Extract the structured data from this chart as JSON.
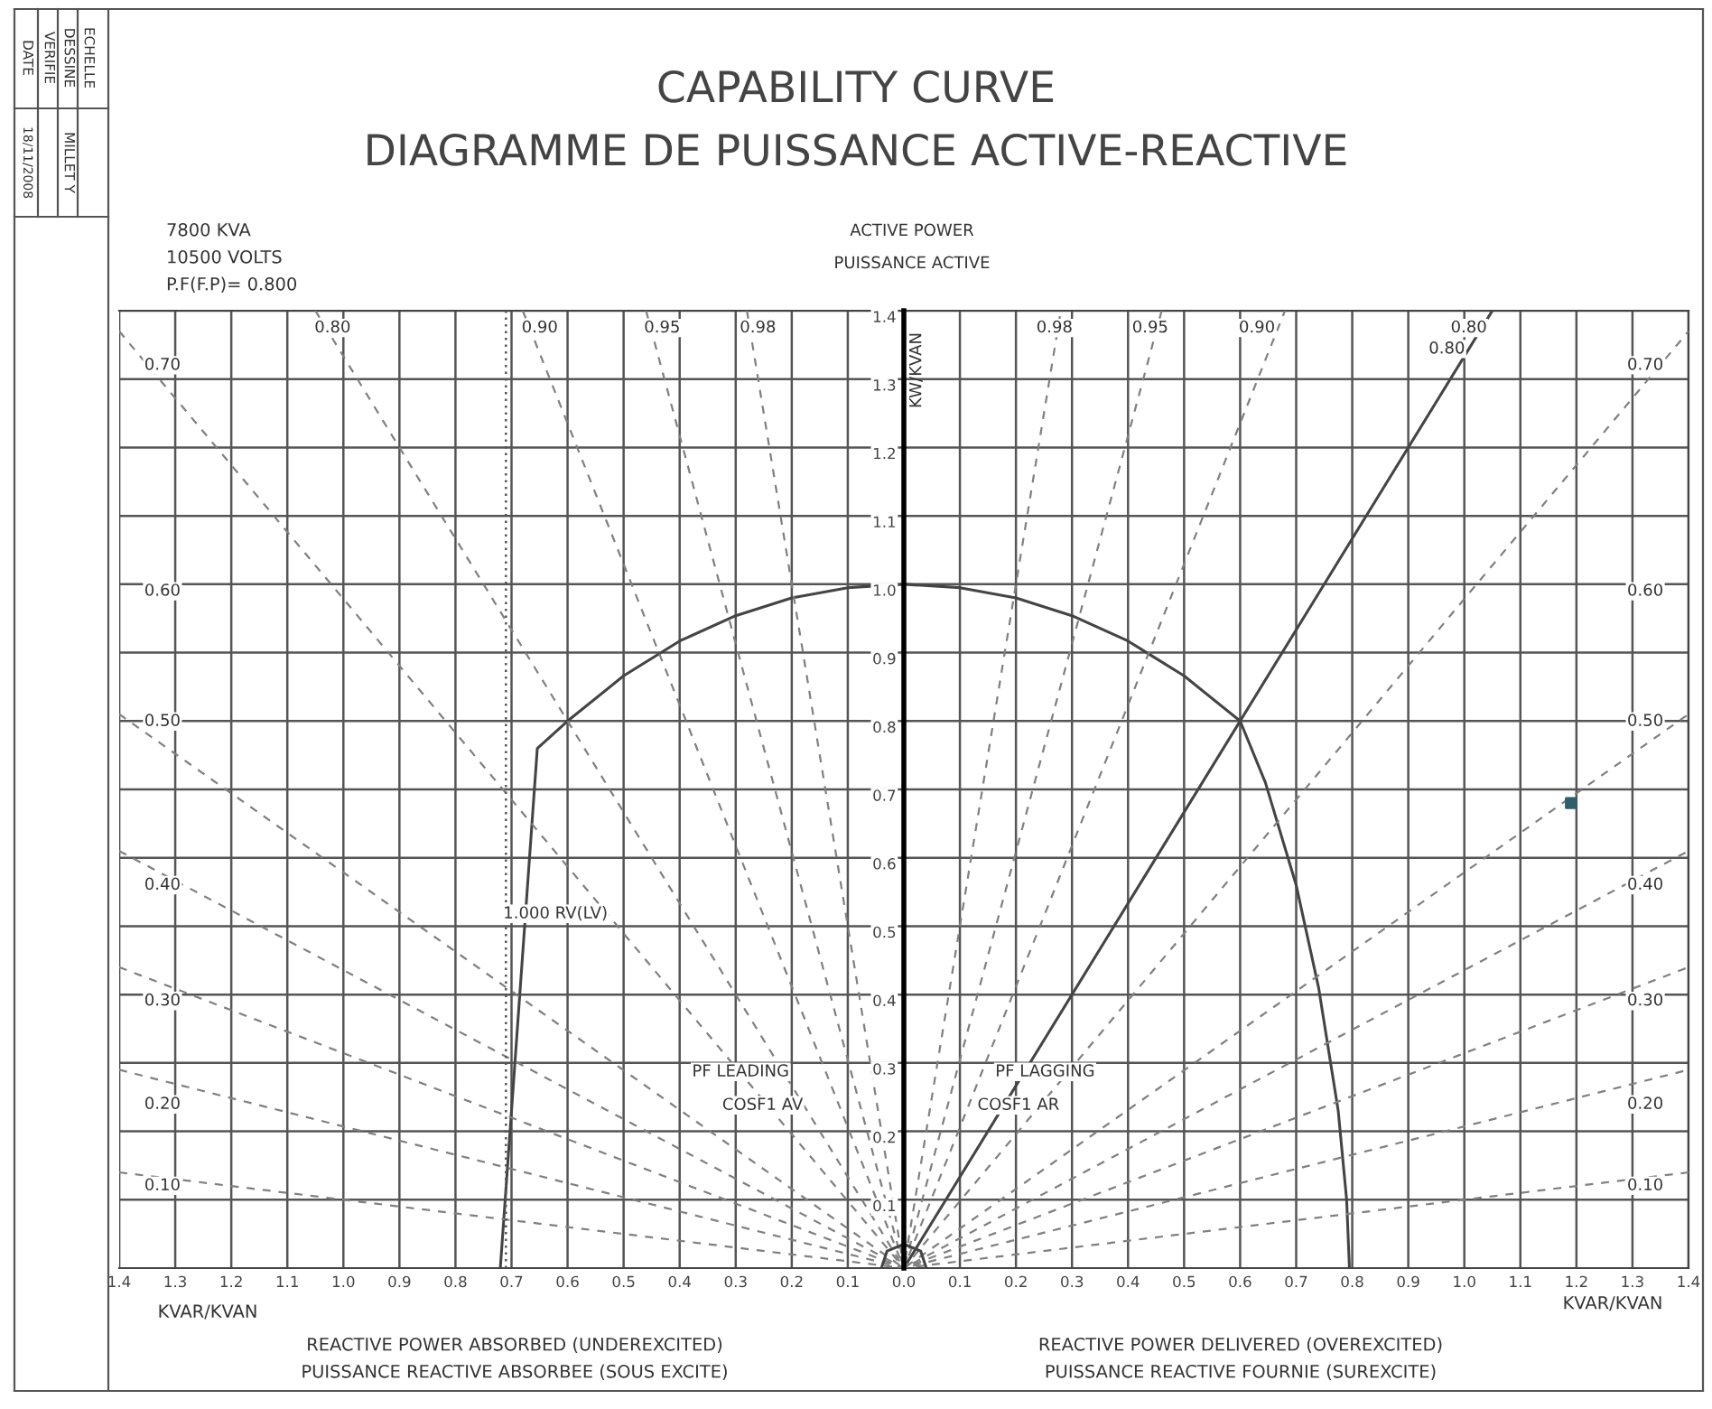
{
  "chart_data": {
    "type": "line",
    "title": "CAPABILITY CURVE",
    "subtitle": "DIAGRAMME DE PUISSANCE ACTIVE-REACTIVE",
    "xlabel": "KVAR/KVAN",
    "ylabel": "KW/KVAN",
    "xlim": [
      -1.4,
      1.4
    ],
    "ylim": [
      0,
      1.4
    ],
    "xticks": [
      {
        "value": -1.4,
        "label": "1.4"
      },
      {
        "value": -1.3,
        "label": "1.3"
      },
      {
        "value": -1.2,
        "label": "1.2"
      },
      {
        "value": -1.1,
        "label": "1.1"
      },
      {
        "value": -1.0,
        "label": "1.0"
      },
      {
        "value": -0.9,
        "label": "0.9"
      },
      {
        "value": -0.8,
        "label": "0.8"
      },
      {
        "value": -0.7,
        "label": "0.7"
      },
      {
        "value": -0.6,
        "label": "0.6"
      },
      {
        "value": -0.5,
        "label": "0.5"
      },
      {
        "value": -0.4,
        "label": "0.4"
      },
      {
        "value": -0.3,
        "label": "0.3"
      },
      {
        "value": -0.2,
        "label": "0.2"
      },
      {
        "value": -0.1,
        "label": "0.1"
      },
      {
        "value": 0,
        "label": "0.0"
      },
      0.1,
      0.2,
      0.3,
      0.4,
      0.5,
      0.6,
      0.7,
      0.8,
      0.9,
      {
        "value": 1,
        "label": "1.0"
      },
      1.1,
      1.2,
      1.3,
      1.4
    ],
    "yticks": [
      0.1,
      0.2,
      0.3,
      0.4,
      0.5,
      0.6,
      0.7,
      0.8,
      0.9,
      {
        "value": 1,
        "label": "1.0"
      },
      1.1,
      1.2,
      1.3,
      1.4
    ],
    "grid": true,
    "series": [
      {
        "color": "#444444",
        "line_style": "solid",
        "x": [
          -0.72,
          -0.654,
          -0.6,
          -0.5,
          -0.4,
          -0.3,
          -0.2,
          -0.1,
          0,
          0.1,
          0.2,
          0.3,
          0.4,
          0.5,
          0.6,
          0.645,
          0.7,
          0.74,
          0.775,
          0.79,
          0.795
        ],
        "values": [
          0,
          0.76,
          0.8,
          0.866,
          0.917,
          0.954,
          0.98,
          0.995,
          1.0,
          0.995,
          0.98,
          0.954,
          0.917,
          0.866,
          0.8,
          0.71,
          0.56,
          0.41,
          0.23,
          0.1,
          0
        ]
      },
      {
        "color": "#444444",
        "line_style": "solid",
        "x": [
          0,
          1.05
        ],
        "values": [
          0,
          1.4
        ]
      },
      {
        "color": "#808080",
        "line_style": "dashed",
        "x": [
          -0.28,
          0,
          0.28
        ],
        "values": [
          1.4,
          0,
          1.4
        ]
      },
      {
        "color": "#808080",
        "line_style": "dashed",
        "x": [
          -0.46,
          0,
          0.46
        ],
        "values": [
          1.4,
          0,
          1.4
        ]
      },
      {
        "color": "#808080",
        "line_style": "dashed",
        "x": [
          -0.68,
          0,
          0.68
        ],
        "values": [
          1.4,
          0,
          1.4
        ]
      },
      {
        "color": "#808080",
        "line_style": "dashed",
        "x": [
          -1.05,
          0
        ],
        "values": [
          1.4,
          0
        ]
      },
      {
        "color": "#808080",
        "line_style": "dashed",
        "x": [
          -1.4,
          0,
          1.4
        ],
        "values": [
          1.37,
          0,
          1.37
        ]
      },
      {
        "color": "#808080",
        "line_style": "dashed",
        "x": [
          -1.4,
          0,
          1.4
        ],
        "values": [
          0.81,
          0,
          0.81
        ]
      },
      {
        "color": "#808080",
        "line_style": "dashed",
        "x": [
          -1.4,
          0,
          1.4
        ],
        "values": [
          0.61,
          0,
          0.61
        ]
      },
      {
        "color": "#808080",
        "line_style": "dashed",
        "x": [
          -1.4,
          0,
          1.4
        ],
        "values": [
          0.44,
          0,
          0.44
        ]
      },
      {
        "color": "#808080",
        "line_style": "dashed",
        "x": [
          -1.4,
          0,
          1.4
        ],
        "values": [
          0.29,
          0,
          0.29
        ]
      },
      {
        "color": "#808080",
        "line_style": "dashed",
        "x": [
          -1.4,
          0,
          1.4
        ],
        "values": [
          0.14,
          0,
          0.14
        ]
      },
      {
        "color": "#444444",
        "line_style": "solid",
        "x": [
          -0.04,
          -0.03,
          0,
          0.03,
          0.04
        ],
        "values": [
          0,
          0.025,
          0.035,
          0.025,
          0
        ]
      },
      {
        "type": "scatter",
        "color": "#2f5f6a",
        "marker": "square",
        "x": [
          1.19
        ],
        "values": [
          0.68
        ]
      }
    ],
    "ref_lines": [
      {
        "axis": "x",
        "value": -0.71,
        "color": "#555555",
        "line_style": "dotted"
      }
    ],
    "annotations": [
      "7800 KVA",
      "10500 VOLTS",
      "P.F(F.P)= 0.800",
      "ACTIVE POWER",
      "PUISSANCE ACTIVE",
      "KVAR/KVAN",
      "REACTIVE POWER ABSORBED (UNDEREXCITED)",
      "PUISSANCE REACTIVE ABSORBEE (SOUS EXCITE)",
      "REACTIVE POWER DELIVERED (OVEREXCITED)",
      "PUISSANCE REACTIVE FOURNIE (SUREXCITE)",
      "ECHELLE",
      "DESSINE",
      "VERIFIE",
      "DATE",
      "MILLET Y",
      "18/11/2008",
      "1.000 RV(LV)",
      "PF LEADING",
      "COSF1 AV",
      "PF LAGGING",
      "COSF1 AR",
      "0.80",
      "0.90",
      "0.95",
      "0.98",
      "0.98",
      "0.95",
      "0.90",
      "0.80",
      "0.80",
      "0.70",
      "0.60",
      "0.50",
      "0.40",
      "0.30",
      "0.20",
      "0.10",
      "0.70",
      "0.60",
      "0.50",
      "0.40",
      "0.30",
      "0.20",
      "0.10"
    ]
  }
}
